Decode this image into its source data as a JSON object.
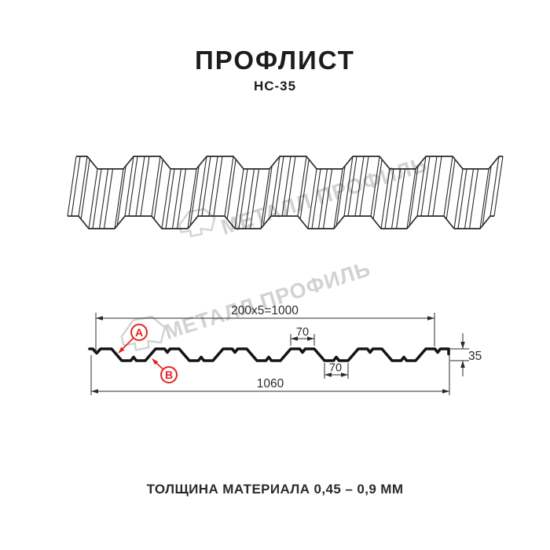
{
  "header": {
    "title": "ПРОФЛИСТ",
    "subtitle": "НС-35"
  },
  "watermark": {
    "text": "МЕТАЛЛ ПРОФИЛЬ",
    "color": "#d2d2d2"
  },
  "diagram": {
    "dims": {
      "cover": "200x5=1000",
      "rib_top": "70",
      "rib_bottom": "70",
      "height": "35",
      "overall": "1060"
    },
    "callouts": {
      "a": "A",
      "b": "B"
    }
  },
  "footer": {
    "thickness_note": "ТОЛЩИНА МАТЕРИАЛА 0,45 – 0,9 ММ"
  },
  "colors": {
    "accent_red": "#e52421",
    "line": "#2b2b2b",
    "profile": "#141414",
    "drawing": "#2a2a2a"
  }
}
